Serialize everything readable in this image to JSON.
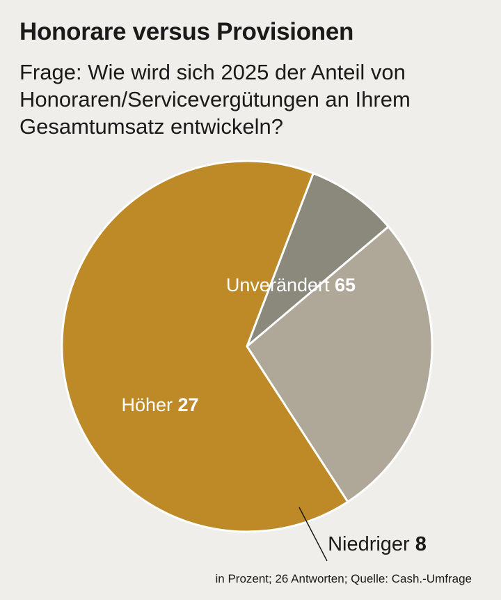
{
  "header": {
    "title": "Honorare versus Provisionen",
    "subtitle": "Frage: Wie wird sich 2025 der Anteil von Honoraren/Servicevergütungen an Ihrem Gesamtumsatz entwickeln?"
  },
  "footer": {
    "note": "in Prozent; 26 Antworten; Quelle: Cash.-Umfrage"
  },
  "colors": {
    "background": "#efeeea",
    "unveraendert": "#bd8a27",
    "hoeher": "#afa797",
    "niedriger": "#8a897b",
    "label_light": "#ffffff",
    "label_dark": "#1a1a1a"
  },
  "chart_data": {
    "type": "pie",
    "categories": [
      "Unverändert",
      "Niedriger",
      "Höher"
    ],
    "values": [
      65,
      8,
      27
    ],
    "unit": "in Prozent"
  }
}
